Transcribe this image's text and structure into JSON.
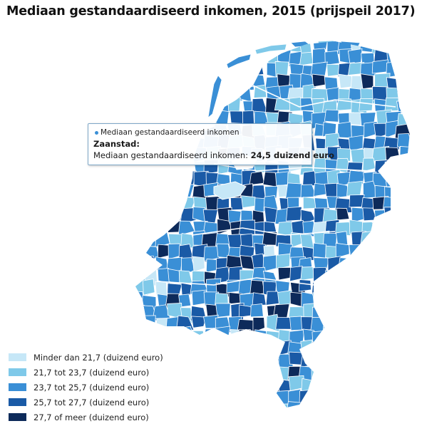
{
  "title": "Mediaan gestandaardiseerd inkomen, 2015 (prijspeil 2017)",
  "legend": [
    {
      "label": "Minder dan 21,7 (duizend euro)",
      "color": "#c6e7f7"
    },
    {
      "label": "21,7 tot 23,7 (duizend euro)",
      "color": "#7fc9e9"
    },
    {
      "label": "23,7 tot 25,7 (duizend euro)",
      "color": "#3a8fd6"
    },
    {
      "label": "25,7 tot 27,7 (duizend euro)",
      "color": "#1a5aa6"
    },
    {
      "label": "27,7 of meer (duizend euro)",
      "color": "#0d2a5a"
    }
  ],
  "tooltip": {
    "series": "Mediaan gestandaardiseerd inkomen",
    "region": "Zaanstad:",
    "value_label": "Mediaan gestandaardiseerd inkomen: ",
    "value": "24,5 duizend euro"
  },
  "colors": {
    "border": "#ffffff",
    "tooltip_border": "#7fa8c9"
  }
}
